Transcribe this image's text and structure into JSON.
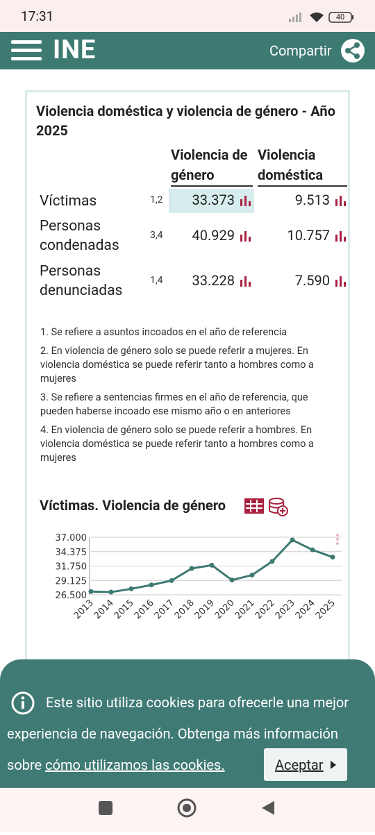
{
  "status_bar": {
    "time": "17:31",
    "battery": "40"
  },
  "header": {
    "logo": "INE",
    "share": "Compartir"
  },
  "table": {
    "title": "Violencia doméstica y violencia de género - Año 2025",
    "columns": [
      "Violencia de género",
      "Violencia doméstica"
    ],
    "rows": [
      {
        "label": "Víctimas",
        "notes": "1,2",
        "values": [
          "33.373",
          "9.513"
        ]
      },
      {
        "label": "Personas condenadas",
        "notes": "3,4",
        "values": [
          "40.929",
          "10.757"
        ]
      },
      {
        "label": "Personas denunciadas",
        "notes": "1,4",
        "values": [
          "33.228",
          "7.590"
        ]
      }
    ],
    "footnotes": [
      "1. Se refiere a asuntos incoados en el año de referencia",
      "2. En violencia de género solo se puede referir a mujeres. En violencia doméstica se puede referir tanto a hombres como a mujeres",
      "3. Se refiere a sentencias firmes en el año de referencia, que pueden haberse incoado ese mismo año o en anteriores",
      "4. En violencia de género solo se puede referir a hombres. En violencia doméstica se puede referir tanto a hombres como a mujeres"
    ]
  },
  "chart_data": {
    "type": "line",
    "title": "Víctimas. Violencia de género",
    "categories": [
      "2013",
      "2014",
      "2015",
      "2016",
      "2017",
      "2018",
      "2019",
      "2020",
      "2021",
      "2022",
      "2023",
      "2024",
      "2025"
    ],
    "values": [
      27100,
      27000,
      27600,
      28300,
      29100,
      31300,
      31900,
      29200,
      30100,
      32600,
      36500,
      34700,
      33373
    ],
    "color": "#3d7a72",
    "ylim": [
      26500,
      37000
    ],
    "yticks": [
      {
        "value": 26500,
        "label": "26.500"
      },
      {
        "value": 29125,
        "label": "29.125"
      },
      {
        "value": 31750,
        "label": "31.750"
      },
      {
        "value": 34375,
        "label": "34.375"
      },
      {
        "value": 37000,
        "label": "37.000"
      }
    ],
    "grid": true
  },
  "cookie_banner": {
    "text": "Este sitio utiliza cookies para ofrecerle una mejor experiencia de navegación. Obtenga más información sobre",
    "link": "cómo utilizamos las cookies.",
    "button": "Aceptar"
  }
}
